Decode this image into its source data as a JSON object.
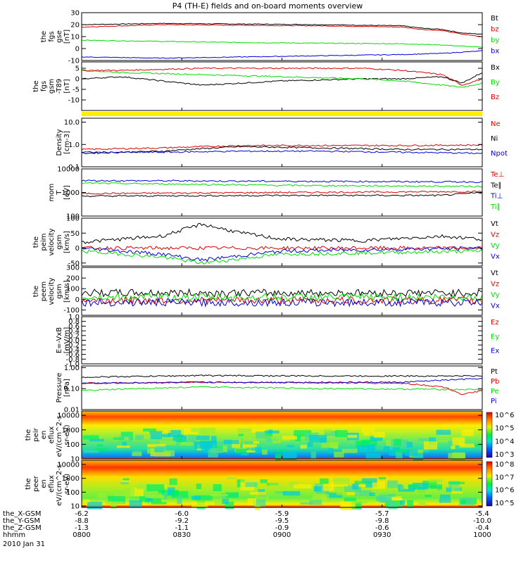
{
  "title": "P4 (TH-E) fields and on-board moments overview",
  "date": "2010 Jan 31",
  "colors": {
    "black": "#000000",
    "red": "#dd0000",
    "green": "#00dd00",
    "blue": "#0000dd",
    "yellow": "#ffee00"
  },
  "time_axis": {
    "ticks": [
      "0800",
      "0830",
      "0900",
      "0930",
      "1000"
    ],
    "rows": [
      {
        "label": "the_X-GSM",
        "values": [
          "-6.2",
          "-6.0",
          "-5.9",
          "-5.7",
          "-5.4"
        ]
      },
      {
        "label": "the_Y-GSM",
        "values": [
          "-8.8",
          "-9.2",
          "-9.5",
          "-9.8",
          "-10.0"
        ]
      },
      {
        "label": "the_Z-GSM",
        "values": [
          "-1.3",
          "-1.1",
          "-0.9",
          "-0.6",
          "-0.4"
        ]
      },
      {
        "label": "hhmm",
        "values": [
          "0800",
          "0830",
          "0900",
          "0930",
          "1000"
        ]
      }
    ]
  },
  "chart_data": [
    {
      "id": "p1",
      "type": "line",
      "ylabel_lines": [
        "the",
        "fgs",
        "gse",
        "[nT]"
      ],
      "ylim": [
        -10,
        30
      ],
      "log": false,
      "yticks": [
        "-10",
        "0",
        "10",
        "20",
        "30"
      ],
      "ytick_vals": [
        -10,
        0,
        10,
        20,
        30
      ],
      "series": [
        {
          "name": "Bt",
          "color": "#000000",
          "x": [
            0,
            0.2,
            0.4,
            0.6,
            0.8,
            0.85,
            0.9,
            0.95,
            1.0
          ],
          "y": [
            20,
            21,
            20.5,
            20,
            19,
            17,
            16,
            13,
            12
          ]
        },
        {
          "name": "bz",
          "color": "#dd0000",
          "x": [
            0,
            0.2,
            0.4,
            0.6,
            0.8,
            0.85,
            0.9,
            0.95,
            1.0
          ],
          "y": [
            18,
            20,
            19.5,
            19,
            18,
            16,
            15,
            12,
            10
          ]
        },
        {
          "name": "by",
          "color": "#00dd00",
          "x": [
            0,
            0.2,
            0.4,
            0.6,
            0.8,
            0.9,
            1.0
          ],
          "y": [
            7,
            6,
            5,
            4.5,
            4,
            3,
            1
          ]
        },
        {
          "name": "bx",
          "color": "#0000dd",
          "x": [
            0,
            0.2,
            0.4,
            0.6,
            0.8,
            0.9,
            1.0
          ],
          "y": [
            -7,
            -8,
            -7,
            -6,
            -5,
            -4,
            -2
          ]
        }
      ]
    },
    {
      "id": "p2",
      "type": "line",
      "ylabel_lines": [
        "the",
        "fgs",
        "gsm",
        "-T89",
        "[nT]"
      ],
      "ylim": [
        -15,
        8
      ],
      "log": false,
      "yticks": [
        "-10",
        "-5",
        "0",
        "5"
      ],
      "ytick_vals": [
        -10,
        -5,
        0,
        5
      ],
      "series": [
        {
          "name": "Bx",
          "color": "#000000",
          "x": [
            0,
            0.1,
            0.3,
            0.5,
            0.7,
            0.8,
            0.9,
            0.95,
            1.0
          ],
          "y": [
            0,
            1,
            -3,
            -1,
            0,
            0,
            1,
            -2,
            3
          ]
        },
        {
          "name": "By",
          "color": "#00dd00",
          "x": [
            0,
            0.1,
            0.3,
            0.5,
            0.7,
            0.8,
            0.9,
            0.95,
            1.0
          ],
          "y": [
            4,
            3,
            2,
            1,
            0,
            -1,
            -3,
            -4,
            -2
          ]
        },
        {
          "name": "Bz",
          "color": "#dd0000",
          "x": [
            0,
            0.1,
            0.3,
            0.5,
            0.7,
            0.8,
            0.9,
            0.95,
            1.0
          ],
          "y": [
            4,
            4,
            5,
            5,
            5,
            4,
            2,
            -3,
            0
          ]
        }
      ]
    },
    {
      "id": "p3",
      "type": "line",
      "ylabel_lines": [
        "Density",
        "[cm-3]"
      ],
      "ylim": [
        0.1,
        15
      ],
      "log": true,
      "yticks": [
        "0.1",
        "1.0",
        "10.0"
      ],
      "ytick_vals": [
        0.1,
        1,
        10
      ],
      "series": [
        {
          "name": "Ne",
          "color": "#dd0000",
          "x": [
            0,
            0.2,
            0.4,
            0.6,
            0.8,
            1.0
          ],
          "y": [
            0.6,
            0.7,
            0.9,
            0.9,
            0.9,
            0.95
          ]
        },
        {
          "name": "Ni",
          "color": "#000000",
          "x": [
            0,
            0.2,
            0.4,
            0.6,
            0.8,
            1.0
          ],
          "y": [
            0.4,
            0.5,
            0.8,
            0.7,
            0.6,
            0.6
          ]
        },
        {
          "name": "Npot",
          "color": "#0000dd",
          "x": [
            0,
            0.2,
            0.4,
            0.6,
            0.8,
            1.0
          ],
          "y": [
            0.45,
            0.45,
            0.5,
            0.5,
            0.45,
            0.4
          ]
        }
      ]
    },
    {
      "id": "p4",
      "type": "line",
      "ylabel_lines": [
        "mom",
        "T",
        "[eV]"
      ],
      "ylim": [
        100,
        10000
      ],
      "log": true,
      "yticks": [
        "100",
        "1000",
        "10000"
      ],
      "ytick_vals": [
        100,
        1000,
        10000
      ],
      "series": [
        {
          "name": "Te⊥",
          "color": "#dd0000",
          "x": [
            0,
            0.5,
            1.0
          ],
          "y": [
            900,
            1000,
            1100
          ]
        },
        {
          "name": "Te∥",
          "color": "#000000",
          "x": [
            0,
            0.5,
            0.9,
            1.0
          ],
          "y": [
            700,
            750,
            750,
            1000
          ]
        },
        {
          "name": "Ti⊥",
          "color": "#0000dd",
          "x": [
            0,
            0.5,
            1.0
          ],
          "y": [
            3200,
            3000,
            2800
          ]
        },
        {
          "name": "Ti∥",
          "color": "#00dd00",
          "x": [
            0,
            0.5,
            1.0
          ],
          "y": [
            2500,
            2000,
            1800
          ]
        }
      ]
    },
    {
      "id": "p5",
      "type": "line",
      "ylabel_lines": [
        "the",
        "peim",
        "velocity",
        "gsm",
        "[km/s]"
      ],
      "ylim": [
        -60,
        100
      ],
      "log": false,
      "yticks": [
        "-50",
        "0",
        "50",
        "100"
      ],
      "ytick_vals": [
        -50,
        0,
        50,
        100
      ],
      "series": [
        {
          "name": "Vt",
          "color": "#000000",
          "x": [
            0,
            0.2,
            0.3,
            0.4,
            0.5,
            0.7,
            0.9,
            1.0
          ],
          "y": [
            20,
            40,
            80,
            50,
            30,
            25,
            40,
            30
          ]
        },
        {
          "name": "Vz",
          "color": "#dd0000",
          "x": [
            0,
            0.5,
            1.0
          ],
          "y": [
            0,
            0,
            0
          ]
        },
        {
          "name": "Vy",
          "color": "#00dd00",
          "x": [
            0,
            0.2,
            0.3,
            0.5,
            1.0
          ],
          "y": [
            -10,
            -30,
            -50,
            -20,
            -10
          ]
        },
        {
          "name": "Vx",
          "color": "#0000dd",
          "x": [
            0,
            0.2,
            0.3,
            0.5,
            1.0
          ],
          "y": [
            0,
            -20,
            -40,
            -10,
            0
          ]
        }
      ]
    },
    {
      "id": "p6",
      "type": "line",
      "ylabel_lines": [
        "the",
        "peem",
        "velocity",
        "gsm",
        "[km/s]"
      ],
      "ylim": [
        -150,
        300
      ],
      "log": false,
      "yticks": [
        "-100",
        "0",
        "100",
        "200",
        "300"
      ],
      "ytick_vals": [
        -100,
        0,
        100,
        200,
        300
      ],
      "series": [
        {
          "name": "Vt",
          "color": "#000000",
          "x": [
            0,
            0.5,
            1.0
          ],
          "y": [
            60,
            60,
            60
          ]
        },
        {
          "name": "Vz",
          "color": "#dd0000",
          "x": [
            0,
            0.5,
            1.0
          ],
          "y": [
            -10,
            -10,
            -10
          ]
        },
        {
          "name": "Vy",
          "color": "#00dd00",
          "x": [
            0,
            0.5,
            1.0
          ],
          "y": [
            20,
            20,
            20
          ]
        },
        {
          "name": "Vx",
          "color": "#0000dd",
          "x": [
            0,
            0.5,
            1.0
          ],
          "y": [
            -30,
            -30,
            -30
          ]
        }
      ]
    },
    {
      "id": "p7",
      "type": "line",
      "ylabel_lines": [
        "E=-VxB",
        "[mV/m]"
      ],
      "ylim": [
        -1,
        1
      ],
      "log": false,
      "yticks": [
        "-1.0",
        "-0.8",
        "-0.6",
        "-0.4",
        "-0.2",
        "0.0",
        "0.2",
        "0.4",
        "0.6",
        "0.8",
        "1.0"
      ],
      "ytick_vals": [
        -1,
        -0.8,
        -0.6,
        -0.4,
        -0.2,
        0,
        0.2,
        0.4,
        0.6,
        0.8,
        1
      ],
      "series": [
        {
          "name": "Ez",
          "color": "#dd0000",
          "x": [],
          "y": []
        },
        {
          "name": "Ey",
          "color": "#00dd00",
          "x": [],
          "y": []
        },
        {
          "name": "Ex",
          "color": "#0000dd",
          "x": [],
          "y": []
        }
      ]
    },
    {
      "id": "p8",
      "type": "line",
      "ylabel_lines": [
        "Pressure",
        "[nPa]"
      ],
      "ylim": [
        0.01,
        1.2
      ],
      "log": true,
      "yticks": [
        "0.01",
        "0.10",
        "1.00"
      ],
      "ytick_vals": [
        0.01,
        0.1,
        1
      ],
      "series": [
        {
          "name": "Pt",
          "color": "#000000",
          "x": [
            0,
            0.3,
            0.6,
            0.9,
            1.0
          ],
          "y": [
            0.35,
            0.42,
            0.4,
            0.4,
            0.4
          ]
        },
        {
          "name": "Pb",
          "color": "#dd0000",
          "x": [
            0,
            0.3,
            0.6,
            0.8,
            0.9,
            0.95,
            1.0
          ],
          "y": [
            0.18,
            0.2,
            0.19,
            0.18,
            0.12,
            0.05,
            0.08
          ]
        },
        {
          "name": "Pe",
          "color": "#00dd00",
          "x": [
            0,
            0.3,
            0.6,
            1.0
          ],
          "y": [
            0.08,
            0.12,
            0.1,
            0.09
          ]
        },
        {
          "name": "Pi",
          "color": "#0000dd",
          "x": [
            0,
            0.3,
            0.6,
            0.8,
            1.0
          ],
          "y": [
            0.18,
            0.2,
            0.2,
            0.2,
            0.3
          ]
        }
      ]
    },
    {
      "id": "p9",
      "type": "heatmap",
      "ylabel_lines": [
        "the",
        "peir",
        "en",
        "eflux",
        "eV/(cm^2-s-",
        "sr-eV)"
      ],
      "ylim": [
        10,
        20000
      ],
      "log": true,
      "yticks": [
        "10",
        "100",
        "1000",
        "10000"
      ],
      "ytick_vals": [
        10,
        100,
        1000,
        10000
      ],
      "colorbar": {
        "ticks": [
          "10^3",
          "10^4",
          "10^5",
          "10^6"
        ]
      }
    },
    {
      "id": "p10",
      "type": "heatmap",
      "ylabel_lines": [
        "the",
        "peer",
        "en",
        "eflux",
        "eV/(cm^2-s-",
        "sr-eV)"
      ],
      "ylim": [
        8,
        20000
      ],
      "log": true,
      "yticks": [
        "10",
        "100",
        "1000",
        "10000"
      ],
      "ytick_vals": [
        10,
        100,
        1000,
        10000
      ],
      "colorbar": {
        "ticks": [
          "10^5",
          "10^6",
          "10^7",
          "10^8"
        ]
      }
    }
  ]
}
